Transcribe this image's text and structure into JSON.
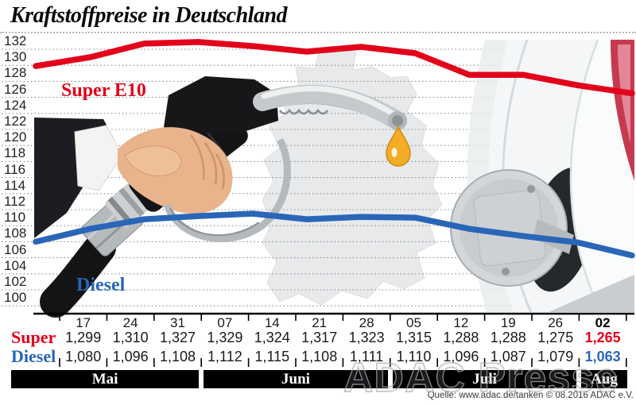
{
  "title": "Kraftstoffpreise in Deutschland",
  "source_note": "Quelle: www.adac.de/tanken   © 08.2016  ADAC e.V.",
  "watermark": "ADAC Presse",
  "colors": {
    "super_red": "#e2001a",
    "diesel_blue": "#2a66b8",
    "grid_gray": "#8f8f8f",
    "axis_black": "#000000",
    "month_bar_bg": "#000000",
    "month_bar_text": "#ffffff",
    "drop_gold": "#f2ac25"
  },
  "chart_data": {
    "type": "line",
    "title": "Kraftstoffpreise in Deutschland",
    "ylim": [
      100,
      132
    ],
    "ytick_step": 2,
    "grid": "dotted-horizontal",
    "legend_position": "labels-on-chart",
    "x_categories": [
      "17",
      "24",
      "31",
      "07",
      "14",
      "21",
      "28",
      "05",
      "12",
      "19",
      "26",
      "02"
    ],
    "months": [
      {
        "label": "Mai",
        "columns": 3
      },
      {
        "label": "Juni",
        "columns": 4
      },
      {
        "label": "Juli",
        "columns": 4
      },
      {
        "label": "Aug",
        "columns": 1
      }
    ],
    "highlight_last_column": true,
    "series": [
      {
        "name": "Super E10",
        "table_label": "Super",
        "color": "#e2001a",
        "values": [
          129.9,
          131.0,
          132.7,
          132.9,
          132.4,
          131.7,
          132.3,
          131.5,
          128.8,
          128.8,
          127.5,
          126.5
        ],
        "table_values": [
          "1,299",
          "1,310",
          "1,327",
          "1,329",
          "1,324",
          "1,317",
          "1,323",
          "1,315",
          "1,288",
          "1,288",
          "1,275",
          "1,265"
        ]
      },
      {
        "name": "Diesel",
        "table_label": "Diesel",
        "color": "#2a66b8",
        "values": [
          108.0,
          109.6,
          110.8,
          111.2,
          111.5,
          110.8,
          111.1,
          111.0,
          109.6,
          108.7,
          107.9,
          106.3
        ],
        "table_values": [
          "1,080",
          "1,096",
          "1,108",
          "1,112",
          "1,115",
          "1,108",
          "1,111",
          "1,110",
          "1,096",
          "1,087",
          "1,079",
          "1,063"
        ]
      }
    ]
  }
}
